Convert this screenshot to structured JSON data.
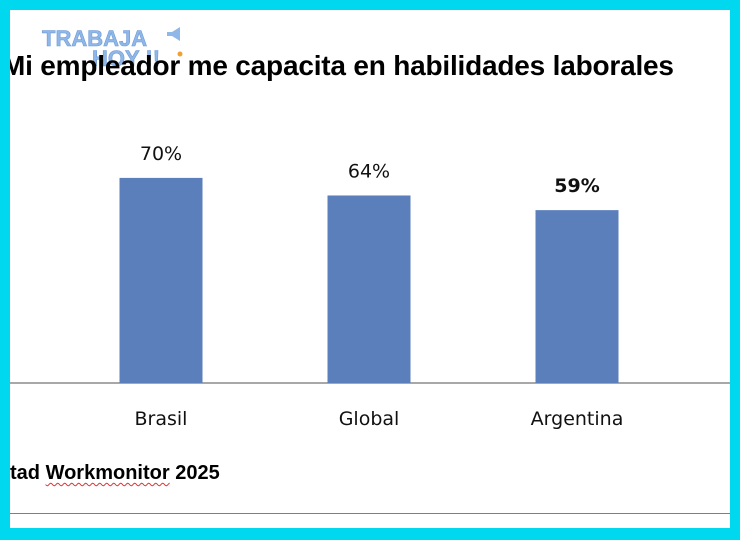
{
  "logo": {
    "line1": "TRABAJA",
    "line2": "HOY !!",
    "color": "#8fb7e8"
  },
  "chart_data": {
    "type": "bar",
    "title": "Mi empleador me capacita en habilidades laborales",
    "categories": [
      "Brasil",
      "Global",
      "Argentina"
    ],
    "values": [
      70,
      64,
      59
    ],
    "value_labels": [
      "70%",
      "64%",
      "59%"
    ],
    "highlight_label": "Argentina",
    "bar_color": "#5b7fba",
    "ylim": [
      0,
      100
    ],
    "grid": false
  },
  "source": {
    "prefix": "tad",
    "brand": "Workmonitor",
    "year": "2025"
  }
}
